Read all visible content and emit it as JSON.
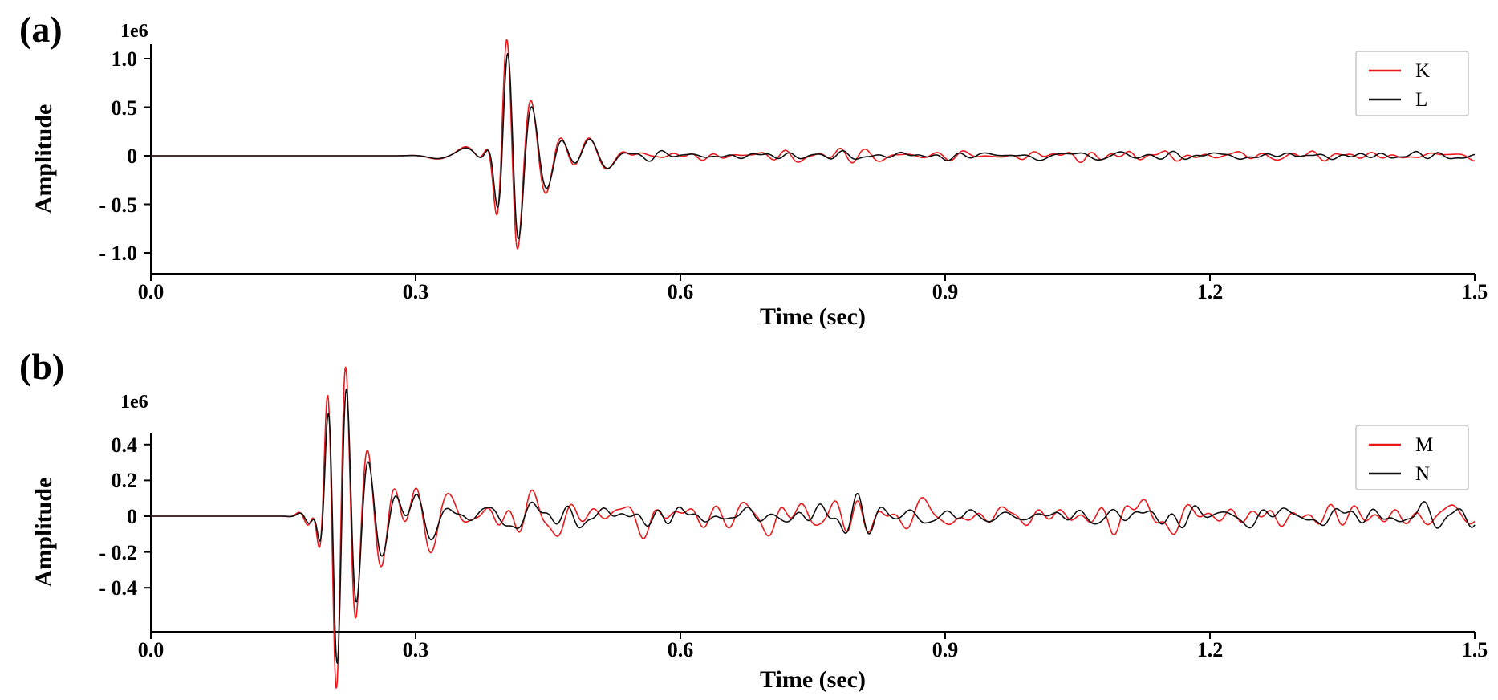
{
  "figure": {
    "background": "#ffffff"
  },
  "chart_data": [
    {
      "id": "a",
      "type": "line",
      "panel_label": "(a)",
      "offset_label": "1e6",
      "xlabel": "Time (sec)",
      "ylabel": "Amplitude",
      "units": "1e6",
      "xlim": [
        0.0,
        1.5
      ],
      "ylim": [
        -1.2,
        1.15
      ],
      "grid": false,
      "xticks": [
        0.0,
        0.3,
        0.6,
        0.9,
        1.2,
        1.5
      ],
      "xtick_labels": [
        "0.0",
        "0.3",
        "0.6",
        "0.9",
        "1.2",
        "1.5"
      ],
      "yticks": [
        1.0,
        0.5,
        0.0,
        -0.5,
        -1.0
      ],
      "ytick_labels": [
        "1.0",
        "0.5",
        "0",
        "- 0.5",
        "- 1.0"
      ],
      "legend": {
        "position": "upper-right",
        "entries": [
          {
            "label": "K",
            "color": "#e8191c"
          },
          {
            "label": "L",
            "color": "#111111"
          }
        ]
      },
      "series": [
        {
          "name": "K",
          "color": "#e8191c",
          "seed": 11,
          "noise": {
            "onset": 0.52,
            "level": 0.025
          },
          "events": [
            [
              0.34,
              0.05,
              16,
              0.02,
              0.5
            ],
            [
              0.362,
              0.07,
              20,
              0.015,
              2.0
            ],
            [
              0.403,
              1.0,
              40,
              0.011,
              1.571
            ],
            [
              0.417,
              -0.35,
              38,
              0.012,
              1.571
            ],
            [
              0.432,
              0.28,
              34,
              0.012,
              1.571
            ],
            [
              0.449,
              -0.22,
              30,
              0.013,
              1.571
            ],
            [
              0.468,
              0.16,
              26,
              0.015,
              1.571
            ],
            [
              0.49,
              0.15,
              18,
              0.02,
              0.8
            ],
            [
              0.515,
              -0.1,
              20,
              0.018,
              1.571
            ],
            [
              0.78,
              0.09,
              34,
              0.018,
              1.2
            ],
            [
              0.86,
              0.05,
              28,
              0.025,
              2.1
            ]
          ]
        },
        {
          "name": "L",
          "color": "#111111",
          "seed": 23,
          "noise": {
            "onset": 0.52,
            "level": 0.02
          },
          "events": [
            [
              0.341,
              0.045,
              16,
              0.02,
              0.6
            ],
            [
              0.363,
              0.06,
              20,
              0.015,
              2.1
            ],
            [
              0.404,
              0.87,
              40,
              0.011,
              1.571
            ],
            [
              0.418,
              -0.33,
              38,
              0.012,
              1.571
            ],
            [
              0.433,
              0.24,
              34,
              0.012,
              1.571
            ],
            [
              0.45,
              -0.19,
              30,
              0.013,
              1.571
            ],
            [
              0.469,
              0.14,
              26,
              0.015,
              1.571
            ],
            [
              0.492,
              0.14,
              18,
              0.02,
              1.0
            ],
            [
              0.516,
              -0.09,
              20,
              0.018,
              1.571
            ],
            [
              0.781,
              0.055,
              34,
              0.018,
              1.5
            ]
          ]
        }
      ]
    },
    {
      "id": "b",
      "type": "line",
      "panel_label": "(b)",
      "offset_label": "1e6",
      "xlabel": "Time (sec)",
      "ylabel": "Amplitude",
      "units": "1e6",
      "xlim": [
        0.0,
        1.5
      ],
      "ylim": [
        -0.65,
        0.47
      ],
      "grid": false,
      "xticks": [
        0.0,
        0.3,
        0.6,
        0.9,
        1.2,
        1.5
      ],
      "xtick_labels": [
        "0.0",
        "0.3",
        "0.6",
        "0.9",
        "1.2",
        "1.5"
      ],
      "yticks": [
        0.4,
        0.2,
        0.0,
        -0.2,
        -0.4
      ],
      "ytick_labels": [
        "0.4",
        "0.2",
        "0",
        "- 0.2",
        "- 0.4"
      ],
      "legend": {
        "position": "upper-right",
        "entries": [
          {
            "label": "M",
            "color": "#e8191c"
          },
          {
            "label": "N",
            "color": "#111111"
          }
        ]
      },
      "series": [
        {
          "name": "M",
          "color": "#e8191c",
          "seed": 37,
          "noise": {
            "onset": 0.34,
            "level": 0.042
          },
          "events": [
            [
              0.188,
              0.1,
              40,
              0.012,
              0.8
            ],
            [
              0.2,
              0.42,
              48,
              0.009,
              1.571
            ],
            [
              0.2105,
              -0.5,
              46,
              0.009,
              1.571
            ],
            [
              0.221,
              0.4,
              44,
              0.01,
              1.571
            ],
            [
              0.233,
              -0.25,
              40,
              0.011,
              1.571
            ],
            [
              0.247,
              0.16,
              34,
              0.012,
              1.571
            ],
            [
              0.262,
              -0.14,
              30,
              0.013,
              1.571
            ],
            [
              0.278,
              0.15,
              26,
              0.014,
              1.571
            ],
            [
              0.297,
              0.16,
              22,
              0.016,
              0.9
            ],
            [
              0.315,
              -0.13,
              22,
              0.016,
              1.571
            ],
            [
              0.335,
              0.08,
              20,
              0.018,
              1.0
            ],
            [
              0.8,
              0.12,
              34,
              0.016,
              1.3
            ],
            [
              0.87,
              0.07,
              28,
              0.02,
              0.6
            ]
          ]
        },
        {
          "name": "N",
          "color": "#111111",
          "seed": 51,
          "noise": {
            "onset": 0.34,
            "level": 0.028
          },
          "events": [
            [
              0.19,
              0.09,
              40,
              0.012,
              1.0
            ],
            [
              0.201,
              0.36,
              48,
              0.009,
              1.65
            ],
            [
              0.2115,
              -0.43,
              46,
              0.009,
              1.571
            ],
            [
              0.222,
              0.34,
              44,
              0.01,
              1.65
            ],
            [
              0.234,
              -0.21,
              40,
              0.011,
              1.571
            ],
            [
              0.248,
              0.13,
              34,
              0.012,
              1.65
            ],
            [
              0.263,
              -0.11,
              30,
              0.013,
              1.571
            ],
            [
              0.28,
              0.12,
              26,
              0.014,
              1.65
            ],
            [
              0.298,
              0.13,
              22,
              0.016,
              1.1
            ],
            [
              0.316,
              -0.1,
              22,
              0.016,
              1.571
            ],
            [
              0.8,
              0.1,
              34,
              0.016,
              1.6
            ]
          ]
        }
      ]
    }
  ]
}
